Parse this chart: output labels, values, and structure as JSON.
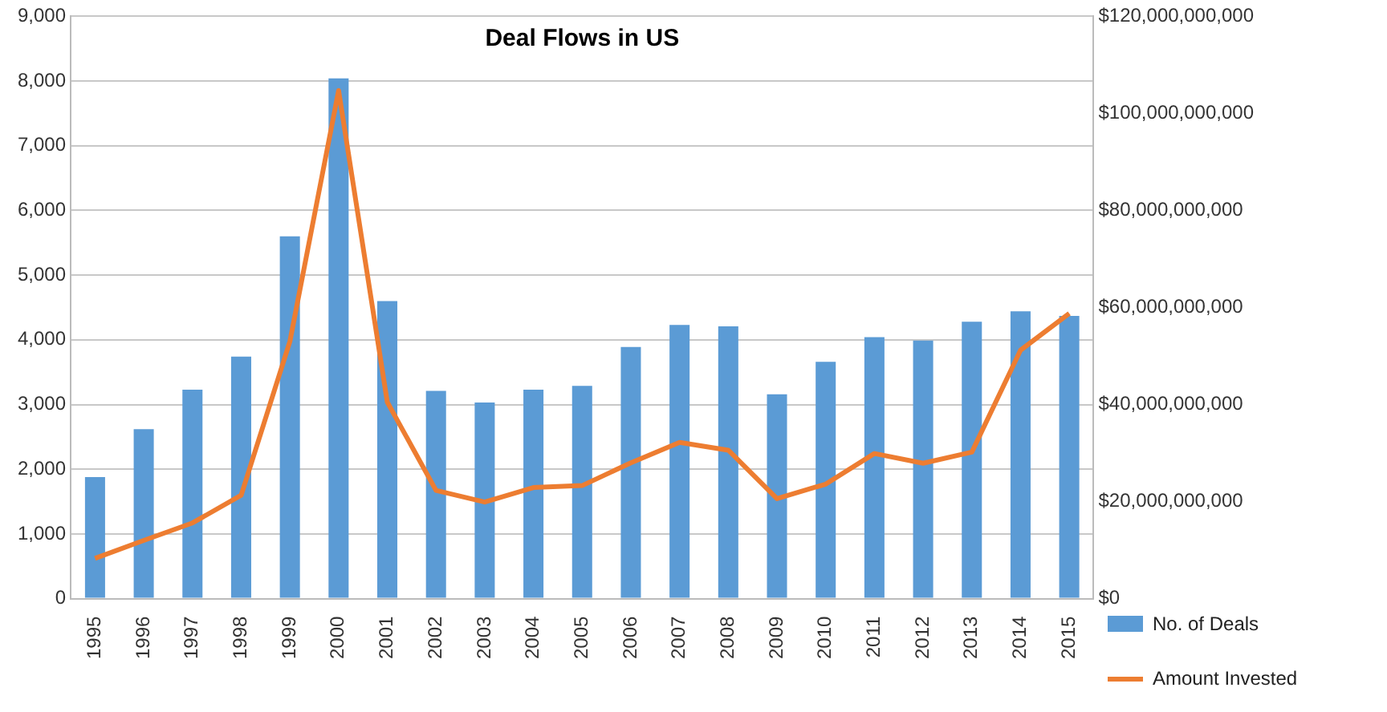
{
  "chart_data": {
    "type": "bar",
    "title": "Deal Flows in US",
    "categories": [
      "1995",
      "1996",
      "1997",
      "1998",
      "1999",
      "2000",
      "2001",
      "2002",
      "2003",
      "2004",
      "2005",
      "2006",
      "2007",
      "2008",
      "2009",
      "2010",
      "2011",
      "2012",
      "2013",
      "2014",
      "2015"
    ],
    "series": [
      {
        "name": "No. of Deals",
        "color": "#5b9bd5",
        "values": [
          1880,
          2620,
          3230,
          3740,
          5600,
          8040,
          4600,
          3210,
          3030,
          3230,
          3290,
          3890,
          4230,
          4210,
          3160,
          3660,
          4040,
          3990,
          4280,
          4440,
          4370
        ]
      },
      {
        "name": "Amount Invested",
        "type": "line",
        "axis": "y2",
        "color": "#ed7d31",
        "values": [
          8300000000,
          12000000000,
          15600000000,
          21300000000,
          53000000000,
          104700000000,
          40500000000,
          22300000000,
          19900000000,
          22900000000,
          23300000000,
          28000000000,
          32200000000,
          30600000000,
          20600000000,
          23600000000,
          29900000000,
          27900000000,
          30200000000,
          51200000000,
          58800000000
        ]
      }
    ],
    "ylim": [
      0,
      9000
    ],
    "yticks": [
      {
        "value": 0,
        "label": "0"
      },
      {
        "value": 1000,
        "label": "1,000"
      },
      {
        "value": 2000,
        "label": "2,000"
      },
      {
        "value": 3000,
        "label": "3,000"
      },
      {
        "value": 4000,
        "label": "4,000"
      },
      {
        "value": 5000,
        "label": "5,000"
      },
      {
        "value": 6000,
        "label": "6,000"
      },
      {
        "value": 7000,
        "label": "7,000"
      },
      {
        "value": 8000,
        "label": "8,000"
      },
      {
        "value": 9000,
        "label": "9,000"
      }
    ],
    "y2lim": [
      0,
      120000000000
    ],
    "y2ticks": [
      {
        "value": 0,
        "label": "$0"
      },
      {
        "value": 20000000000,
        "label": "$20,000,000,000"
      },
      {
        "value": 40000000000,
        "label": "$40,000,000,000"
      },
      {
        "value": 60000000000,
        "label": "$60,000,000,000"
      },
      {
        "value": 80000000000,
        "label": "$80,000,000,000"
      },
      {
        "value": 100000000000,
        "label": "$100,000,000,000"
      },
      {
        "value": 120000000000,
        "label": "$120,000,000,000"
      }
    ],
    "grid": "y",
    "legend": "right",
    "marker": "none",
    "line_style": "solid"
  }
}
